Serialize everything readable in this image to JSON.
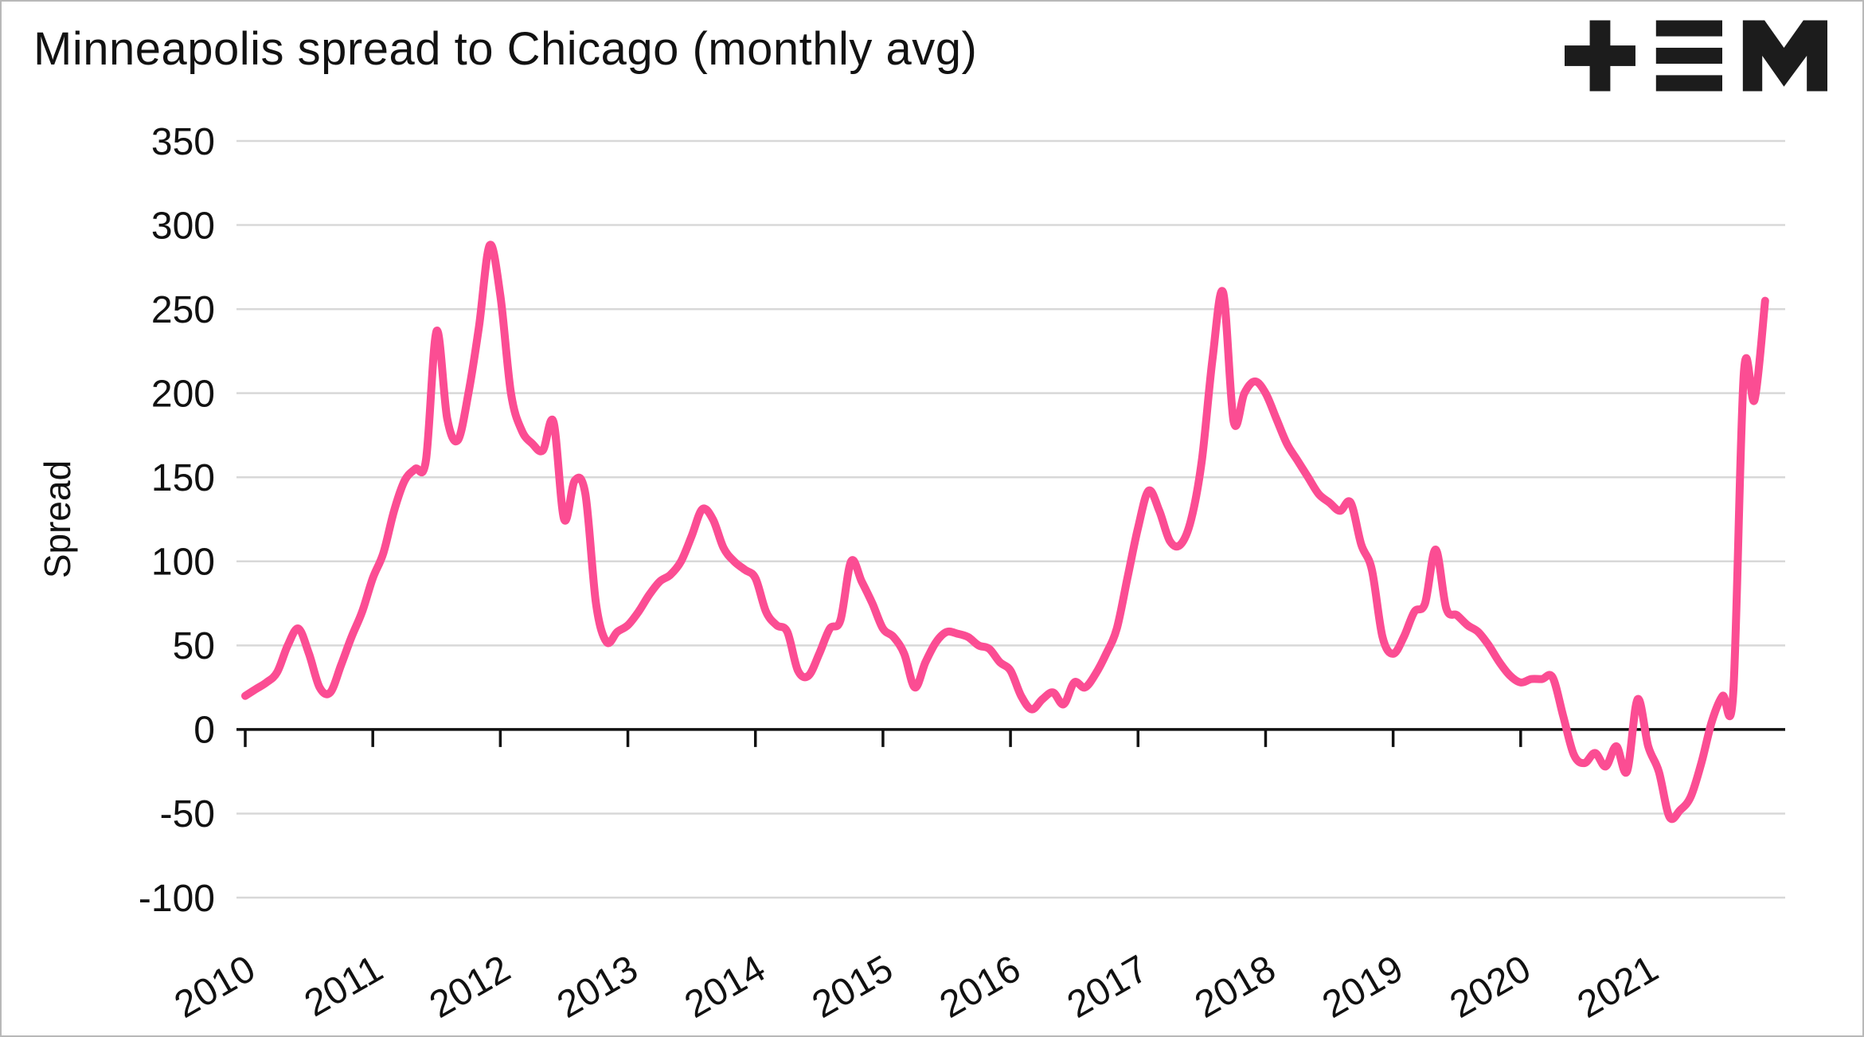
{
  "header": {
    "title": "Minneapolis spread to Chicago (monthly avg)",
    "logo_name": "tem-logo"
  },
  "chart_data": {
    "type": "line",
    "title": "Minneapolis spread to Chicago (monthly avg)",
    "xlabel": "",
    "ylabel": "Spread",
    "ylim": [
      -100,
      350
    ],
    "yticks": [
      350,
      300,
      250,
      200,
      150,
      100,
      50,
      0,
      -50,
      -100
    ],
    "xtick_labels": [
      "2010",
      "2011",
      "2012",
      "2013",
      "2014",
      "2015",
      "2016",
      "2017",
      "2018",
      "2019",
      "2020",
      "2021"
    ],
    "grid": "horizontal",
    "legend": "none",
    "series": [
      {
        "name": "Minneapolis spread to Chicago",
        "color": "#fb4d93",
        "start": "2010-01",
        "frequency": "monthly",
        "values": [
          20,
          24,
          28,
          34,
          50,
          60,
          45,
          25,
          22,
          38,
          55,
          70,
          90,
          105,
          130,
          148,
          155,
          160,
          237,
          185,
          172,
          200,
          240,
          288,
          258,
          200,
          178,
          170,
          166,
          183,
          125,
          148,
          140,
          75,
          52,
          58,
          62,
          70,
          80,
          88,
          92,
          100,
          115,
          131,
          125,
          108,
          100,
          95,
          90,
          70,
          62,
          58,
          35,
          32,
          45,
          60,
          65,
          100,
          88,
          75,
          60,
          55,
          45,
          25,
          40,
          52,
          58,
          57,
          55,
          50,
          48,
          40,
          35,
          20,
          12,
          18,
          22,
          15,
          28,
          25,
          33,
          45,
          60,
          90,
          120,
          142,
          130,
          112,
          110,
          125,
          160,
          220,
          260,
          183,
          200,
          207,
          200,
          185,
          170,
          160,
          150,
          140,
          135,
          130,
          135,
          110,
          95,
          55,
          45,
          55,
          70,
          75,
          107,
          72,
          68,
          62,
          58,
          50,
          40,
          32,
          28,
          30,
          30,
          31,
          8,
          -15,
          -20,
          -14,
          -22,
          -10,
          -25,
          18,
          -10,
          -25,
          -52,
          -48,
          -40,
          -20,
          5,
          20,
          22,
          212,
          196,
          255
        ]
      }
    ]
  }
}
